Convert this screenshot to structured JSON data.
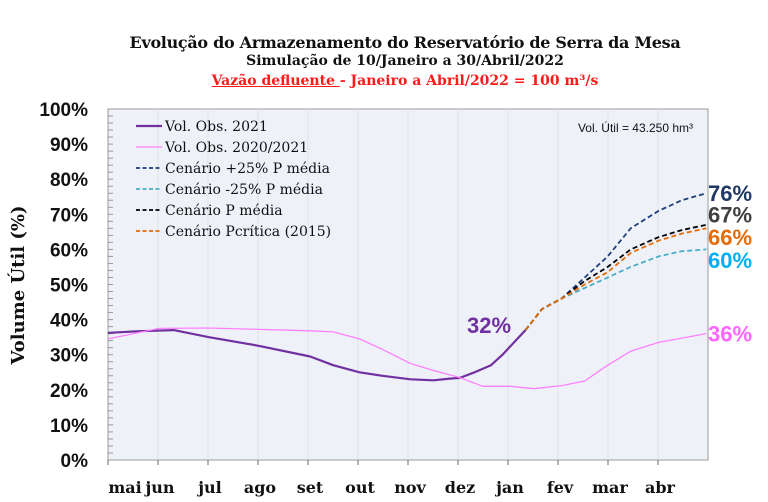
{
  "chart_data": {
    "type": "line",
    "title": "Evolução do Armazenamento do Reservatório de Serra da Mesa",
    "subtitle": "Simulação de 10/Janeiro a 30/Abril/2022",
    "subtitle2_underlined": "Vazão defluente ",
    "subtitle2_rest": "-  Janeiro a Abril/2022 = 100 m³/s",
    "ylabel": "Volume Útil (%)",
    "xlabel": "",
    "annotation": "Vol. Útil  = 43.250 hm³",
    "ylim": [
      0,
      100
    ],
    "xlim": [
      "2021-05-01",
      "2022-05-01"
    ],
    "yticks": [
      "0%",
      "10%",
      "20%",
      "30%",
      "40%",
      "50%",
      "60%",
      "70%",
      "80%",
      "90%",
      "100%"
    ],
    "xticks": [
      "mai",
      "jun",
      "jul",
      "ago",
      "set",
      "out",
      "nov",
      "dez",
      "jan",
      "fev",
      "mar",
      "abr"
    ],
    "grid": "vertical",
    "legend": "top-left",
    "background": "#eef2f8",
    "series": [
      {
        "name": "Vol. Obs. 2021",
        "color": "#7030a0",
        "dash": false,
        "width": 2.2,
        "x": [
          "2021-05-01",
          "2021-05-20",
          "2021-06-10",
          "2021-07-01",
          "2021-08-01",
          "2021-09-01",
          "2021-09-15",
          "2021-10-01",
          "2021-10-15",
          "2021-11-01",
          "2021-11-15",
          "2021-11-25",
          "2021-12-01",
          "2021-12-10",
          "2021-12-20",
          "2021-12-27",
          "2022-01-03",
          "2022-01-10"
        ],
        "y": [
          36.2,
          36.7,
          37,
          35,
          32.5,
          29.5,
          27,
          25,
          24,
          23,
          22.7,
          23.2,
          23.4,
          25,
          27,
          30,
          33.5,
          37
        ]
      },
      {
        "name": "Vol. Obs. 2020/2021",
        "color": "#ff80ff",
        "dash": false,
        "width": 1.3,
        "x": [
          "2021-05-01",
          "2021-06-01",
          "2021-07-01",
          "2021-08-01",
          "2021-09-01",
          "2021-09-15",
          "2021-10-01",
          "2021-10-15",
          "2021-11-01",
          "2021-11-15",
          "2021-12-01",
          "2021-12-15",
          "2022-01-01",
          "2022-01-15",
          "2022-02-01",
          "2022-02-15",
          "2022-03-01",
          "2022-03-15",
          "2022-04-01",
          "2022-04-30"
        ],
        "y": [
          34.5,
          37.5,
          37.6,
          37.2,
          36.8,
          36.5,
          34.5,
          31.5,
          27.5,
          25.5,
          23.5,
          21,
          21,
          20.3,
          21.2,
          22.5,
          27,
          31,
          33.5,
          36
        ]
      },
      {
        "name": "Cenário +25% P média",
        "color": "#1f3f7a",
        "dash": true,
        "width": 1.8,
        "x": [
          "2022-01-10",
          "2022-01-20",
          "2022-02-01",
          "2022-02-15",
          "2022-03-01",
          "2022-03-15",
          "2022-04-01",
          "2022-04-15",
          "2022-04-30"
        ],
        "y": [
          37,
          43,
          46,
          52,
          58,
          66,
          71,
          74,
          76
        ]
      },
      {
        "name": "Cenário -25% P média",
        "color": "#4bacc6",
        "dash": true,
        "width": 1.8,
        "x": [
          "2022-01-10",
          "2022-01-20",
          "2022-02-01",
          "2022-02-15",
          "2022-03-01",
          "2022-03-15",
          "2022-04-01",
          "2022-04-15",
          "2022-04-30"
        ],
        "y": [
          37,
          43,
          46,
          49,
          52,
          55,
          58,
          59.5,
          60
        ]
      },
      {
        "name": "Cenário P média",
        "color": "#000000",
        "dash": true,
        "width": 1.8,
        "x": [
          "2022-01-10",
          "2022-01-20",
          "2022-02-01",
          "2022-02-15",
          "2022-03-01",
          "2022-03-15",
          "2022-04-01",
          "2022-04-15",
          "2022-04-30"
        ],
        "y": [
          37,
          43,
          46,
          51,
          55,
          60,
          63.5,
          65.5,
          67
        ]
      },
      {
        "name": "Cenário Pcrítica (2015)",
        "color": "#e46c0a",
        "dash": true,
        "width": 1.8,
        "x": [
          "2022-01-10",
          "2022-01-20",
          "2022-02-01",
          "2022-02-15",
          "2022-03-01",
          "2022-03-15",
          "2022-04-01",
          "2022-04-15",
          "2022-04-30"
        ],
        "y": [
          37,
          43,
          46,
          50,
          53.5,
          59,
          62.5,
          64.5,
          66
        ]
      }
    ],
    "data_labels": [
      {
        "text": "32%",
        "color": "#7030a0",
        "x": "2021-12-31",
        "y": 38.5
      },
      {
        "text": "76%",
        "color": "#1f3864",
        "x": "2022-05-01",
        "y": 76
      },
      {
        "text": "67%",
        "color": "#404040",
        "x": "2022-05-01",
        "y": 70
      },
      {
        "text": "66%",
        "color": "#e46c0a",
        "x": "2022-05-01",
        "y": 63.5
      },
      {
        "text": "60%",
        "color": "#00b0f0",
        "x": "2022-05-01",
        "y": 57
      },
      {
        "text": "36%",
        "color": "#ff66ff",
        "x": "2022-05-01",
        "y": 36
      }
    ]
  }
}
